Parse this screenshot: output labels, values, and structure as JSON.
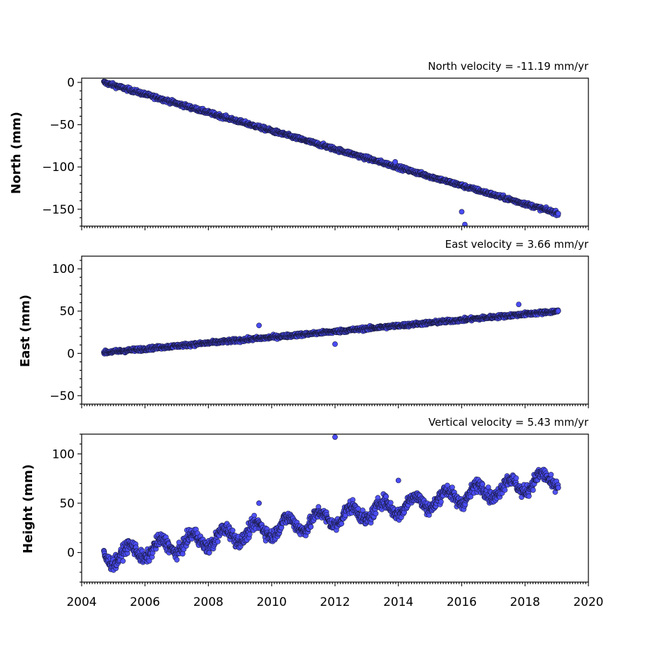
{
  "chart_data": [
    {
      "type": "scatter",
      "panel": "north",
      "ylabel": "North (mm)",
      "annotation": "North velocity = -11.19 mm/yr",
      "velocity_mm_per_yr": -11.19,
      "x_start": 2004.7,
      "x_end": 2019.05,
      "y_start": 0,
      "y_end": -155,
      "xlim": [
        2004,
        2020
      ],
      "ylim": [
        -170,
        5
      ],
      "yticks": [
        0,
        -50,
        -100,
        -150
      ],
      "ytick_labels": [
        "0",
        "−50",
        "−100",
        "−150"
      ],
      "noise_mm": 1.6,
      "outliers": [
        [
          2013.9,
          -94
        ],
        [
          2016.0,
          -153
        ],
        [
          2016.1,
          -168
        ]
      ],
      "marker_color": "#4a4cf5"
    },
    {
      "type": "scatter",
      "panel": "east",
      "ylabel": "East (mm)",
      "annotation": "East velocity = 3.66 mm/yr",
      "velocity_mm_per_yr": 3.66,
      "x_start": 2004.7,
      "x_end": 2019.05,
      "y_start": 1,
      "y_end": 50,
      "xlim": [
        2004,
        2020
      ],
      "ylim": [
        -60,
        115
      ],
      "yticks": [
        100,
        50,
        0,
        -50
      ],
      "ytick_labels": [
        "100",
        "50",
        "0",
        "−50"
      ],
      "noise_mm": 1.5,
      "outliers": [
        [
          2009.6,
          33
        ],
        [
          2012.0,
          11
        ],
        [
          2017.8,
          58
        ]
      ],
      "marker_color": "#4a4cf5"
    },
    {
      "type": "scatter",
      "panel": "height",
      "ylabel": "Height (mm)",
      "annotation": "Vertical velocity = 5.43 mm/yr",
      "velocity_mm_per_yr": 5.43,
      "x_start": 2004.7,
      "x_end": 2019.05,
      "y_start": -5,
      "y_end": 75,
      "xlim": [
        2004,
        2020
      ],
      "ylim": [
        -30,
        120
      ],
      "yticks": [
        100,
        50,
        0
      ],
      "ytick_labels": [
        "100",
        "50",
        "0"
      ],
      "noise_mm": 4.5,
      "seasonal_amp_mm": 8,
      "outliers": [
        [
          2012.0,
          117
        ],
        [
          2009.6,
          50
        ],
        [
          2014.0,
          73
        ]
      ],
      "marker_color": "#4a4cf5"
    }
  ],
  "x_axis": {
    "ticks": [
      2004,
      2006,
      2008,
      2010,
      2012,
      2014,
      2016,
      2018,
      2020
    ],
    "tick_labels": [
      "2004",
      "2006",
      "2008",
      "2010",
      "2012",
      "2014",
      "2016",
      "2018",
      "2020"
    ]
  }
}
